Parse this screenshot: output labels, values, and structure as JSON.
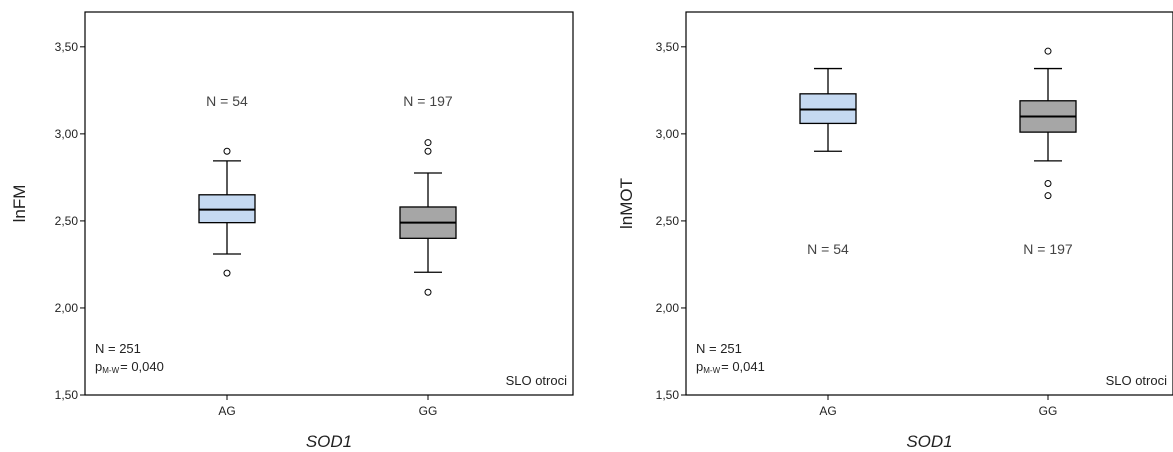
{
  "chart_data": [
    {
      "type": "box",
      "ylabel": "lnFM",
      "xlabel": "SOD1",
      "categories": [
        "AG",
        "GG"
      ],
      "ylim": [
        1.5,
        3.7
      ],
      "yticks": [
        "1,50",
        "2,00",
        "2,50",
        "3,00",
        "3,50"
      ],
      "ytick_values": [
        1.5,
        2.0,
        2.5,
        3.0,
        3.5
      ],
      "boxes": [
        {
          "category": "AG",
          "whisker_low": 2.31,
          "q1": 2.49,
          "median": 2.565,
          "q3": 2.65,
          "whisker_high": 2.845,
          "outliers": [
            2.2,
            2.9
          ],
          "color": "#c5d9f1",
          "n_label": "N = 54",
          "n_y": 3.19
        },
        {
          "category": "GG",
          "whisker_low": 2.205,
          "q1": 2.4,
          "median": 2.49,
          "q3": 2.58,
          "whisker_high": 2.775,
          "outliers": [
            2.09,
            2.9,
            2.95
          ],
          "color": "#a6a6a6",
          "n_label": "N = 197",
          "n_y": 3.19
        }
      ],
      "annotations": {
        "n_total": "N = 251",
        "p_prefix": "p",
        "p_subscript": "M-W",
        "p_value": "= 0,040",
        "group": "SLO otroci"
      }
    },
    {
      "type": "box",
      "ylabel": "lnMOT",
      "xlabel": "SOD1",
      "categories": [
        "AG",
        "GG"
      ],
      "ylim": [
        1.5,
        3.7
      ],
      "yticks": [
        "1,50",
        "2,00",
        "2,50",
        "3,00",
        "3,50"
      ],
      "ytick_values": [
        1.5,
        2.0,
        2.5,
        3.0,
        3.5
      ],
      "boxes": [
        {
          "category": "AG",
          "whisker_low": 2.9,
          "q1": 3.06,
          "median": 3.14,
          "q3": 3.23,
          "whisker_high": 3.375,
          "outliers": [],
          "color": "#c5d9f1",
          "n_label": "N = 54",
          "n_y": 2.34
        },
        {
          "category": "GG",
          "whisker_low": 2.845,
          "q1": 3.01,
          "median": 3.1,
          "q3": 3.19,
          "whisker_high": 3.375,
          "outliers": [
            2.645,
            2.715,
            3.475
          ],
          "color": "#a6a6a6",
          "n_label": "N = 197",
          "n_y": 2.34
        }
      ],
      "annotations": {
        "n_total": "N = 251",
        "p_prefix": "p",
        "p_subscript": "M-W",
        "p_value": "= 0,041",
        "group": "SLO otroci"
      }
    }
  ]
}
